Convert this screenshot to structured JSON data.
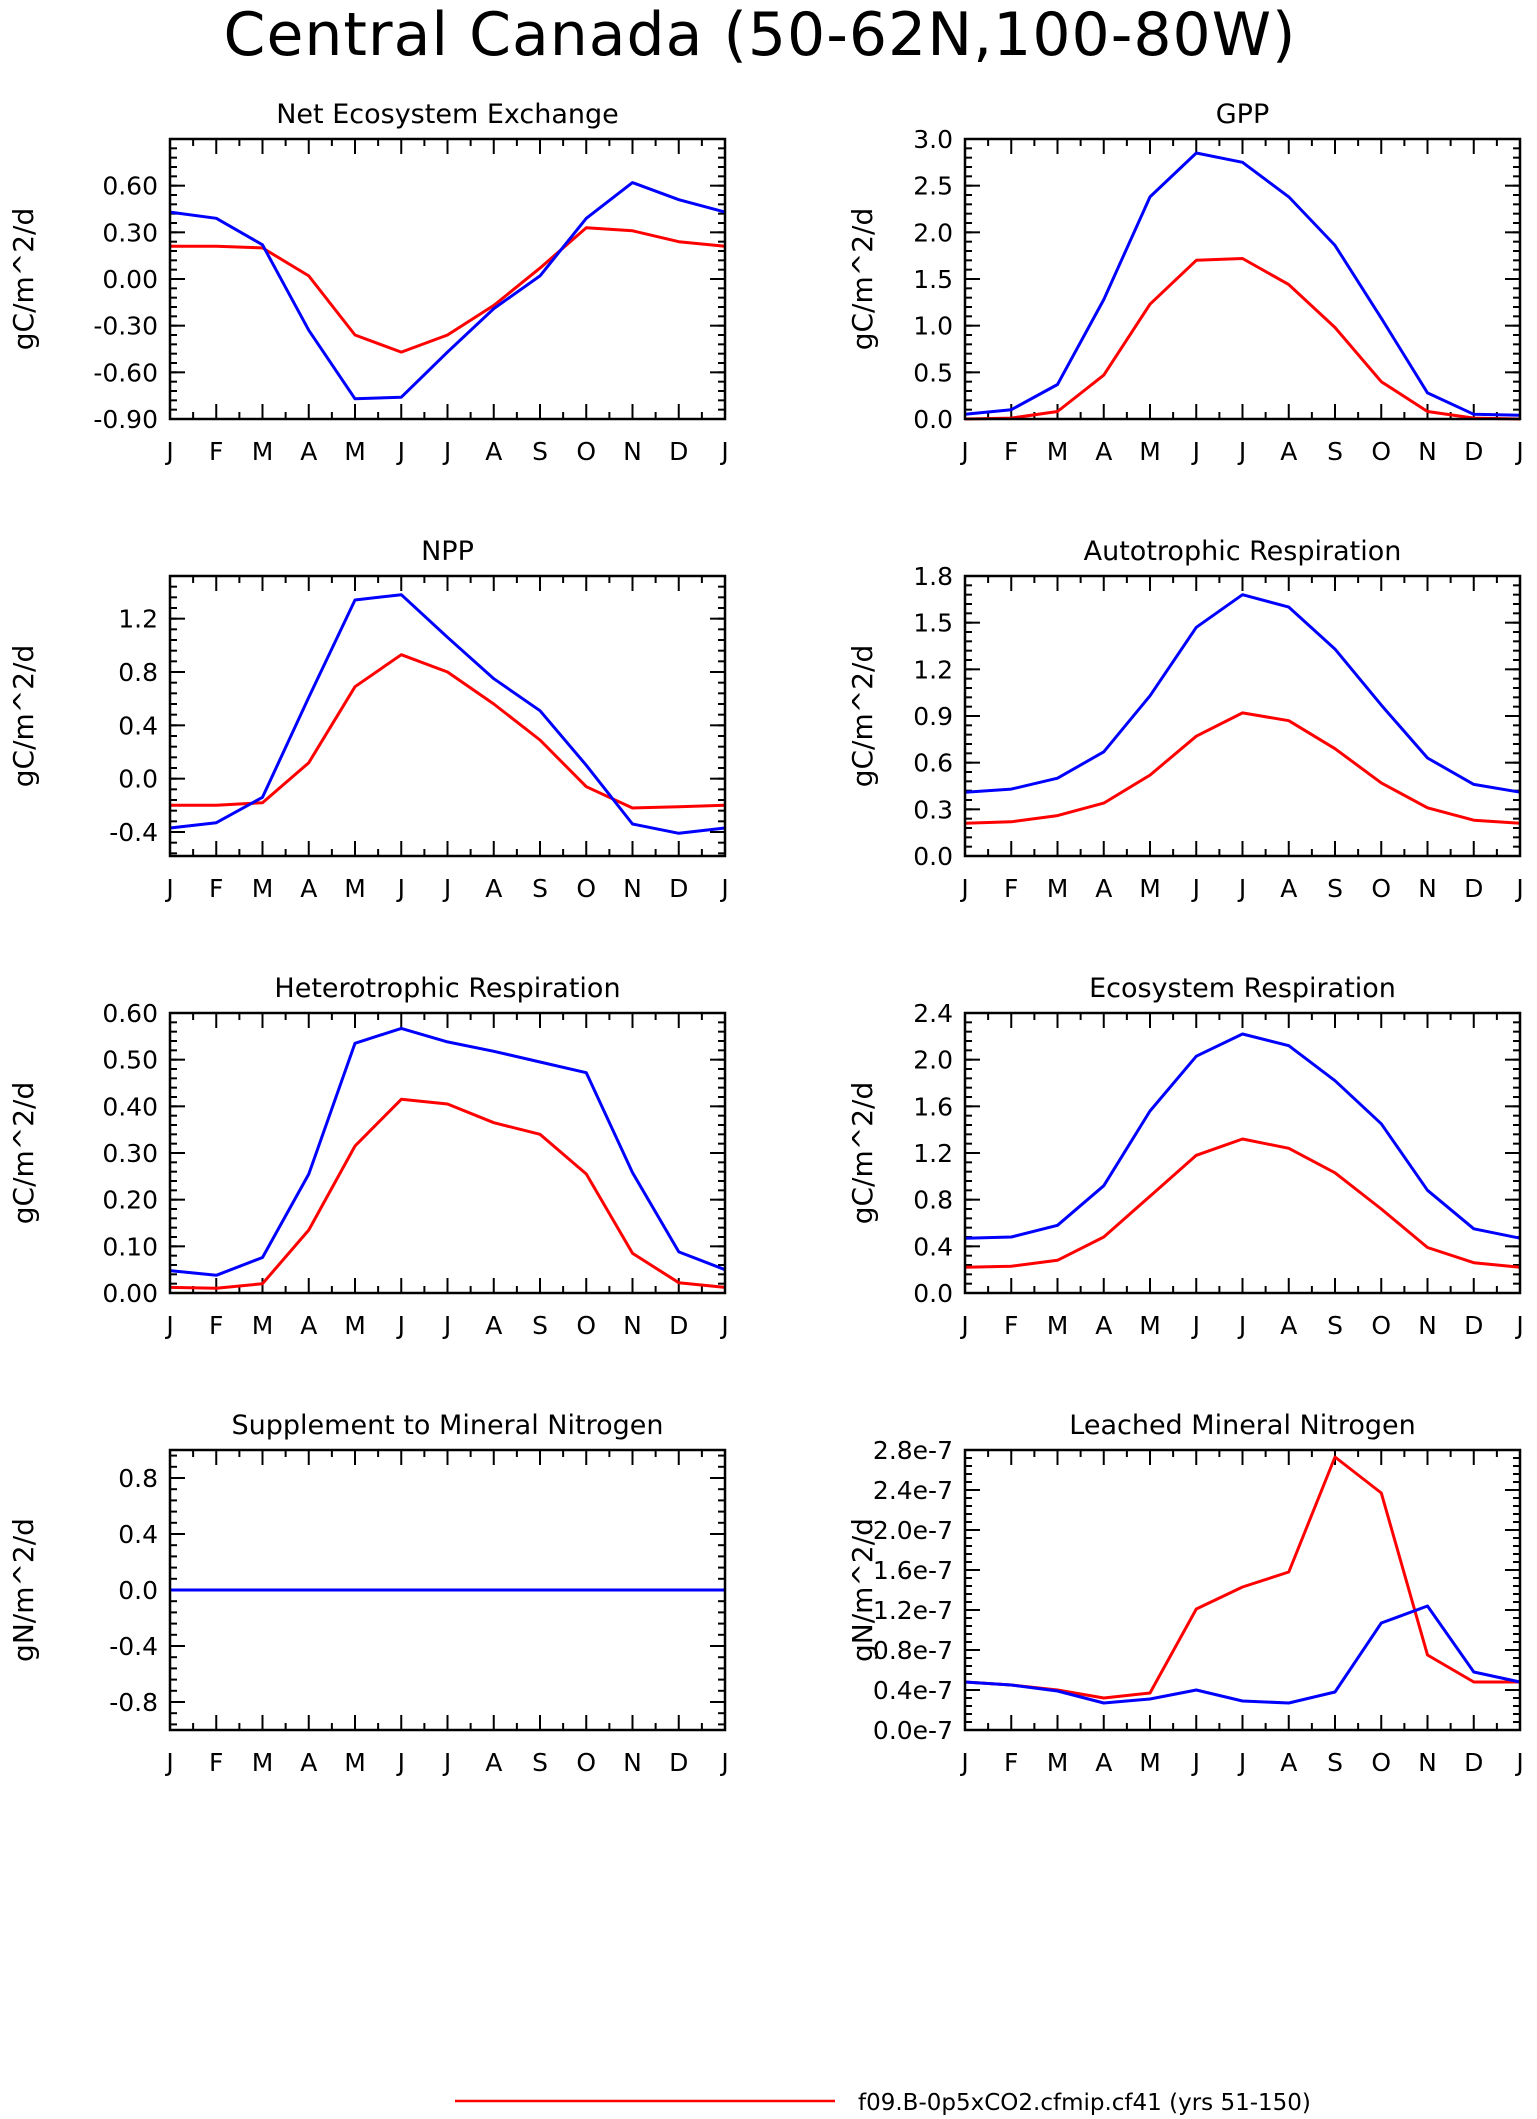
{
  "figure": {
    "title": "Central Canada (50-62N,100-80W)"
  },
  "legend": {
    "entries": [
      {
        "label": "f09.B-0p5xCO2.cfmip.cf41 (yrs 51-150)",
        "color": "#ff0000"
      }
    ]
  },
  "chart_data": [
    {
      "type": "line",
      "title": "Net Ecosystem Exchange",
      "ylabel": "gC/m^2/d",
      "categories": [
        "J",
        "F",
        "M",
        "A",
        "M",
        "J",
        "J",
        "A",
        "S",
        "O",
        "N",
        "D",
        "J"
      ],
      "ylim": [
        -0.9,
        0.9
      ],
      "yticks": [
        -0.9,
        -0.6,
        -0.3,
        0.0,
        0.3,
        0.6
      ],
      "ytick_labels": [
        "-0.90",
        "-0.60",
        "-0.30",
        "0.00",
        "0.30",
        "0.60"
      ],
      "series": [
        {
          "color": "#ff0000",
          "values": [
            0.21,
            0.21,
            0.2,
            0.02,
            -0.36,
            -0.47,
            -0.36,
            -0.17,
            0.07,
            0.33,
            0.31,
            0.24,
            0.21
          ]
        },
        {
          "color": "#0000ff",
          "values": [
            0.43,
            0.39,
            0.22,
            -0.33,
            -0.77,
            -0.76,
            -0.47,
            -0.19,
            0.02,
            0.39,
            0.62,
            0.51,
            0.43
          ]
        }
      ]
    },
    {
      "type": "line",
      "title": "GPP",
      "ylabel": "gC/m^2/d",
      "categories": [
        "J",
        "F",
        "M",
        "A",
        "M",
        "J",
        "J",
        "A",
        "S",
        "O",
        "N",
        "D",
        "J"
      ],
      "ylim": [
        0.0,
        3.0
      ],
      "yticks": [
        0.0,
        0.5,
        1.0,
        1.5,
        2.0,
        2.5,
        3.0
      ],
      "ytick_labels": [
        "0.0",
        "0.5",
        "1.0",
        "1.5",
        "2.0",
        "2.5",
        "3.0"
      ],
      "series": [
        {
          "color": "#ff0000",
          "values": [
            0.0,
            0.01,
            0.08,
            0.47,
            1.23,
            1.7,
            1.72,
            1.44,
            0.98,
            0.4,
            0.08,
            0.01,
            0.0
          ]
        },
        {
          "color": "#0000ff",
          "values": [
            0.05,
            0.1,
            0.37,
            1.28,
            2.38,
            2.85,
            2.75,
            2.38,
            1.86,
            1.08,
            0.28,
            0.05,
            0.04
          ]
        }
      ]
    },
    {
      "type": "line",
      "title": "NPP",
      "ylabel": "gC/m^2/d",
      "categories": [
        "J",
        "F",
        "M",
        "A",
        "M",
        "J",
        "J",
        "A",
        "S",
        "O",
        "N",
        "D",
        "J"
      ],
      "ylim": [
        -0.58,
        1.52
      ],
      "yticks": [
        -0.4,
        0.0,
        0.4,
        0.8,
        1.2
      ],
      "ytick_labels": [
        "-0.4",
        "0.0",
        "0.4",
        "0.8",
        "1.2"
      ],
      "series": [
        {
          "color": "#ff0000",
          "values": [
            -0.2,
            -0.2,
            -0.18,
            0.12,
            0.69,
            0.93,
            0.8,
            0.56,
            0.29,
            -0.06,
            -0.22,
            -0.21,
            -0.2
          ]
        },
        {
          "color": "#0000ff",
          "values": [
            -0.37,
            -0.33,
            -0.14,
            0.61,
            1.34,
            1.38,
            1.06,
            0.75,
            0.51,
            0.1,
            -0.34,
            -0.41,
            -0.37
          ]
        }
      ]
    },
    {
      "type": "line",
      "title": "Autotrophic Respiration",
      "ylabel": "gC/m^2/d",
      "categories": [
        "J",
        "F",
        "M",
        "A",
        "M",
        "J",
        "J",
        "A",
        "S",
        "O",
        "N",
        "D",
        "J"
      ],
      "ylim": [
        0.0,
        1.8
      ],
      "yticks": [
        0.0,
        0.3,
        0.6,
        0.9,
        1.2,
        1.5,
        1.8
      ],
      "ytick_labels": [
        "0.0",
        "0.3",
        "0.6",
        "0.9",
        "1.2",
        "1.5",
        "1.8"
      ],
      "series": [
        {
          "color": "#ff0000",
          "values": [
            0.21,
            0.22,
            0.26,
            0.34,
            0.52,
            0.77,
            0.92,
            0.87,
            0.69,
            0.47,
            0.31,
            0.23,
            0.21
          ]
        },
        {
          "color": "#0000ff",
          "values": [
            0.41,
            0.43,
            0.5,
            0.67,
            1.03,
            1.47,
            1.68,
            1.6,
            1.33,
            0.97,
            0.63,
            0.46,
            0.41
          ]
        }
      ]
    },
    {
      "type": "line",
      "title": "Heterotrophic Respiration",
      "ylabel": "gC/m^2/d",
      "categories": [
        "J",
        "F",
        "M",
        "A",
        "M",
        "J",
        "J",
        "A",
        "S",
        "O",
        "N",
        "D",
        "J"
      ],
      "ylim": [
        0.0,
        0.6
      ],
      "yticks": [
        0.0,
        0.1,
        0.2,
        0.3,
        0.4,
        0.5,
        0.6
      ],
      "ytick_labels": [
        "0.00",
        "0.10",
        "0.20",
        "0.30",
        "0.40",
        "0.50",
        "0.60"
      ],
      "series": [
        {
          "color": "#ff0000",
          "values": [
            0.012,
            0.01,
            0.02,
            0.135,
            0.315,
            0.415,
            0.405,
            0.365,
            0.34,
            0.255,
            0.085,
            0.022,
            0.012
          ]
        },
        {
          "color": "#0000ff",
          "values": [
            0.048,
            0.038,
            0.076,
            0.255,
            0.535,
            0.567,
            0.538,
            0.518,
            0.495,
            0.472,
            0.258,
            0.088,
            0.05
          ]
        }
      ]
    },
    {
      "type": "line",
      "title": "Ecosystem Respiration",
      "ylabel": "gC/m^2/d",
      "categories": [
        "J",
        "F",
        "M",
        "A",
        "M",
        "J",
        "J",
        "A",
        "S",
        "O",
        "N",
        "D",
        "J"
      ],
      "ylim": [
        0.0,
        2.4
      ],
      "yticks": [
        0.0,
        0.4,
        0.8,
        1.2,
        1.6,
        2.0,
        2.4
      ],
      "ytick_labels": [
        "0.0",
        "0.4",
        "0.8",
        "1.2",
        "1.6",
        "2.0",
        "2.4"
      ],
      "series": [
        {
          "color": "#ff0000",
          "values": [
            0.22,
            0.23,
            0.28,
            0.48,
            0.83,
            1.18,
            1.32,
            1.24,
            1.03,
            0.72,
            0.39,
            0.26,
            0.22
          ]
        },
        {
          "color": "#0000ff",
          "values": [
            0.47,
            0.48,
            0.58,
            0.92,
            1.56,
            2.03,
            2.22,
            2.12,
            1.82,
            1.45,
            0.88,
            0.55,
            0.47
          ]
        }
      ]
    },
    {
      "type": "line",
      "title": "Supplement to Mineral Nitrogen",
      "ylabel": "gN/m^2/d",
      "categories": [
        "J",
        "F",
        "M",
        "A",
        "M",
        "J",
        "J",
        "A",
        "S",
        "O",
        "N",
        "D",
        "J"
      ],
      "ylim": [
        -1.0,
        1.0
      ],
      "yticks": [
        -0.8,
        -0.4,
        0.0,
        0.4,
        0.8
      ],
      "ytick_labels": [
        "-0.8",
        "-0.4",
        "0.0",
        "0.4",
        "0.8"
      ],
      "series": [
        {
          "color": "#ff0000",
          "values": [
            0,
            0,
            0,
            0,
            0,
            0,
            0,
            0,
            0,
            0,
            0,
            0,
            0
          ]
        },
        {
          "color": "#0000ff",
          "values": [
            0,
            0,
            0,
            0,
            0,
            0,
            0,
            0,
            0,
            0,
            0,
            0,
            0
          ]
        }
      ]
    },
    {
      "type": "line",
      "title": "Leached Mineral Nitrogen",
      "ylabel": "gN/m^2/d",
      "categories": [
        "J",
        "F",
        "M",
        "A",
        "M",
        "J",
        "J",
        "A",
        "S",
        "O",
        "N",
        "D",
        "J"
      ],
      "ylim": [
        0.0,
        2.8e-07
      ],
      "yticks": [
        0.0,
        4e-08,
        8e-08,
        1.2e-07,
        1.6e-07,
        2e-07,
        2.4e-07,
        2.8e-07
      ],
      "ytick_labels": [
        "0.0e-7",
        "0.4e-7",
        "0.8e-7",
        "1.2e-7",
        "1.6e-7",
        "2.0e-7",
        "2.4e-7",
        "2.8e-7"
      ],
      "series": [
        {
          "color": "#ff0000",
          "values": [
            4.8e-08,
            4.5e-08,
            4e-08,
            3.2e-08,
            3.7e-08,
            1.21e-07,
            1.43e-07,
            1.58e-07,
            2.73e-07,
            2.37e-07,
            7.5e-08,
            4.8e-08,
            4.8e-08
          ]
        },
        {
          "color": "#0000ff",
          "values": [
            4.8e-08,
            4.5e-08,
            3.9e-08,
            2.7e-08,
            3.1e-08,
            4e-08,
            2.9e-08,
            2.7e-08,
            3.8e-08,
            1.07e-07,
            1.24e-07,
            5.8e-08,
            4.8e-08
          ]
        }
      ]
    }
  ]
}
